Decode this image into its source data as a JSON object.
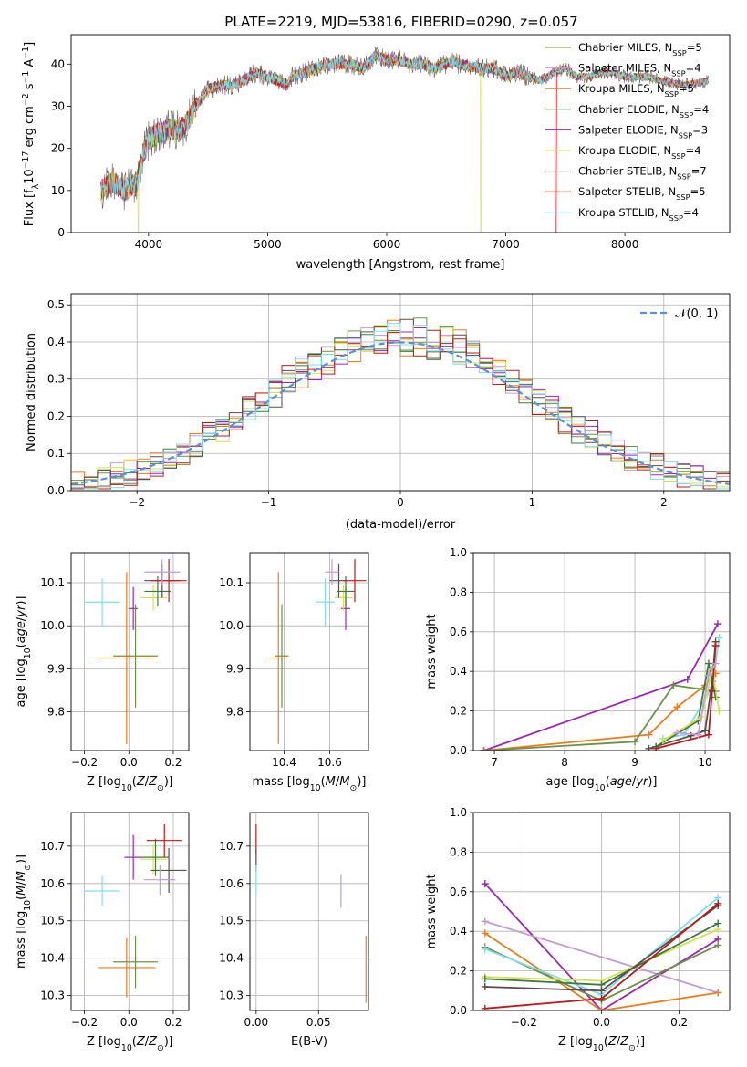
{
  "figure_title": "PLATE=2219, MJD=53816, FIBERID=0290, z=0.057",
  "model_colors": [
    "#6f8f4a",
    "#c39bd3",
    "#e67e22",
    "#3e7a3e",
    "#9b27af",
    "#d4e157",
    "#5d4a4a",
    "#b71c1c",
    "#80deea"
  ],
  "chart_data": [
    {
      "id": "spectrum",
      "type": "line",
      "title": "PLATE=2219, MJD=53816, FIBERID=0290, z=0.057",
      "xlabel": "wavelength [Angstrom, rest frame]",
      "ylabel": "Flux [f_λ 10^-17 erg cm^-2 s^-1 A^-1]",
      "xlim": [
        3350,
        8880
      ],
      "ylim": [
        0,
        47
      ],
      "xticks": [
        "4000",
        "5000",
        "6000",
        "7000",
        "8000"
      ],
      "yticks": [
        "0",
        "10",
        "20",
        "30",
        "40"
      ],
      "grid": false,
      "legend_position": "top-right",
      "legend": [
        {
          "label": "Chabrier MILES, N",
          "sub": "SSP",
          "tail": "=5"
        },
        {
          "label": "Salpeter MILES, N",
          "sub": "SSP",
          "tail": "=4"
        },
        {
          "label": "Kroupa MILES, N",
          "sub": "SSP",
          "tail": "=5"
        },
        {
          "label": "Chabrier ELODIE, N",
          "sub": "SSP",
          "tail": "=4"
        },
        {
          "label": "Salpeter ELODIE, N",
          "sub": "SSP",
          "tail": "=3"
        },
        {
          "label": "Kroupa ELODIE, N",
          "sub": "SSP",
          "tail": "=4"
        },
        {
          "label": "Chabrier STELIB, N",
          "sub": "SSP",
          "tail": "=7"
        },
        {
          "label": "Salpeter STELIB, N",
          "sub": "SSP",
          "tail": "=5"
        },
        {
          "label": "Kroupa STELIB, N",
          "sub": "SSP",
          "tail": "=4"
        }
      ],
      "continuum": [
        [
          3600,
          10
        ],
        [
          3700,
          12
        ],
        [
          3800,
          10
        ],
        [
          3900,
          12
        ],
        [
          3950,
          18
        ],
        [
          4000,
          22
        ],
        [
          4100,
          24
        ],
        [
          4300,
          25
        ],
        [
          4400,
          30
        ],
        [
          4500,
          34
        ],
        [
          4600,
          35
        ],
        [
          4700,
          35
        ],
        [
          4800,
          36
        ],
        [
          4900,
          38
        ],
        [
          5000,
          37
        ],
        [
          5100,
          36
        ],
        [
          5170,
          35
        ],
        [
          5200,
          37
        ],
        [
          5300,
          38
        ],
        [
          5400,
          39
        ],
        [
          5500,
          40
        ],
        [
          5700,
          40
        ],
        [
          5800,
          39
        ],
        [
          5900,
          42
        ],
        [
          6000,
          41
        ],
        [
          6100,
          41
        ],
        [
          6200,
          40
        ],
        [
          6300,
          40
        ],
        [
          6400,
          39
        ],
        [
          6500,
          40
        ],
        [
          6562,
          41
        ],
        [
          6600,
          40
        ],
        [
          6800,
          39
        ],
        [
          6900,
          39
        ],
        [
          7000,
          37
        ],
        [
          7100,
          38
        ],
        [
          7200,
          37
        ],
        [
          7300,
          36
        ],
        [
          7400,
          38
        ],
        [
          7500,
          39
        ],
        [
          7600,
          37
        ],
        [
          7700,
          37
        ],
        [
          7800,
          38
        ],
        [
          7900,
          38
        ],
        [
          8000,
          37
        ],
        [
          8100,
          37
        ],
        [
          8200,
          37
        ],
        [
          8300,
          36
        ],
        [
          8500,
          35
        ],
        [
          8700,
          36
        ]
      ],
      "dropouts": [
        {
          "x": 3915,
          "series": 5
        },
        {
          "x": 6790,
          "series": 5
        },
        {
          "x": 7420,
          "series": 7
        }
      ]
    },
    {
      "id": "residuals",
      "type": "step",
      "xlabel": "(data-model)/error",
      "ylabel": "Normed distribution",
      "xlim": [
        -2.5,
        2.5
      ],
      "ylim": [
        0,
        0.53
      ],
      "xticks": [
        "−2",
        "−1",
        "0",
        "1",
        "2"
      ],
      "yticks": [
        "0.0",
        "0.1",
        "0.2",
        "0.3",
        "0.4",
        "0.5"
      ],
      "grid": true,
      "legend_position": "top-right",
      "legend": [
        {
          "label": "𝒩(0, 1)"
        }
      ],
      "bin_width": 0.1,
      "reference_curve": "gaussian(0,1)"
    },
    {
      "id": "age-vs-Z",
      "type": "errorbar",
      "xlabel": "Z [log10(Z/Z☉)]",
      "ylabel": "age [log10(age/yr)]",
      "xlim": [
        -0.26,
        0.27
      ],
      "ylim": [
        9.71,
        10.17
      ],
      "xticks": [
        -0.2,
        0.0,
        0.2
      ],
      "xtick_labels": [
        "−0.2",
        "0.0",
        "0.2"
      ],
      "yticks": [
        9.8,
        9.9,
        10.0,
        10.1
      ],
      "ytick_labels": [
        "9.8",
        "9.9",
        "10.0",
        "10.1"
      ],
      "grid": true,
      "points": [
        {
          "x": -0.12,
          "y": 10.055,
          "xerr": 0.08,
          "yerr": 0.055,
          "series": 8
        },
        {
          "x": 0.02,
          "y": 10.04,
          "xerr": 0.02,
          "yerr": 0.05,
          "series": 4
        },
        {
          "x": -0.01,
          "y": 9.925,
          "xerr": 0.13,
          "yerr": 0.2,
          "series": 2
        },
        {
          "x": 0.03,
          "y": 9.93,
          "xerr": 0.1,
          "yerr": 0.12,
          "series": 0
        },
        {
          "x": 0.11,
          "y": 10.065,
          "xerr": 0.06,
          "yerr": 0.03,
          "series": 5
        },
        {
          "x": 0.13,
          "y": 10.08,
          "xerr": 0.06,
          "yerr": 0.035,
          "series": 3
        },
        {
          "x": 0.15,
          "y": 10.105,
          "xerr": 0.08,
          "yerr": 0.04,
          "series": 6
        },
        {
          "x": 0.18,
          "y": 10.105,
          "xerr": 0.08,
          "yerr": 0.05,
          "series": 7
        },
        {
          "x": 0.15,
          "y": 10.125,
          "xerr": 0.08,
          "yerr": 0.03,
          "series": 1
        }
      ]
    },
    {
      "id": "age-vs-mass",
      "type": "errorbar",
      "xlabel": "mass [log10(M/M☉)]",
      "ylabel": "",
      "xlim": [
        10.25,
        10.77
      ],
      "ylim": [
        9.71,
        10.17
      ],
      "xticks": [
        10.4,
        10.6
      ],
      "xtick_labels": [
        "10.4",
        "10.6"
      ],
      "yticks": [
        9.8,
        9.9,
        10.0,
        10.1
      ],
      "ytick_labels": [
        "9.8",
        "9.9",
        "10.0",
        "10.1"
      ],
      "grid": true,
      "points": [
        {
          "x": 10.58,
          "y": 10.055,
          "xerr": 0.04,
          "yerr": 0.055,
          "series": 8
        },
        {
          "x": 10.67,
          "y": 10.04,
          "xerr": 0.02,
          "yerr": 0.05,
          "series": 4
        },
        {
          "x": 10.375,
          "y": 9.925,
          "xerr": 0.04,
          "yerr": 0.2,
          "series": 2
        },
        {
          "x": 10.39,
          "y": 9.93,
          "xerr": 0.03,
          "yerr": 0.12,
          "series": 0
        },
        {
          "x": 10.66,
          "y": 10.065,
          "xerr": 0.04,
          "yerr": 0.03,
          "series": 5
        },
        {
          "x": 10.67,
          "y": 10.08,
          "xerr": 0.04,
          "yerr": 0.035,
          "series": 3
        },
        {
          "x": 10.64,
          "y": 10.105,
          "xerr": 0.04,
          "yerr": 0.04,
          "series": 6
        },
        {
          "x": 10.71,
          "y": 10.105,
          "xerr": 0.05,
          "yerr": 0.05,
          "series": 7
        },
        {
          "x": 10.61,
          "y": 10.125,
          "xerr": 0.03,
          "yerr": 0.03,
          "series": 1
        }
      ]
    },
    {
      "id": "weight-vs-age",
      "type": "line",
      "xlabel": "age [log10(age/yr)]",
      "ylabel": "mass weight",
      "xlim": [
        6.7,
        10.35
      ],
      "ylim": [
        0,
        1.0
      ],
      "xticks": [
        7,
        8,
        9,
        10
      ],
      "xtick_labels": [
        "7",
        "8",
        "9",
        "10"
      ],
      "yticks": [
        0,
        0.2,
        0.4,
        0.6,
        0.8,
        1.0
      ],
      "ytick_labels": [
        "0.0",
        "0.2",
        "0.4",
        "0.6",
        "0.8",
        "1.0"
      ],
      "grid": true,
      "series": [
        {
          "color": 4,
          "points": [
            [
              6.85,
              0.0
            ],
            [
              9.75,
              0.36
            ],
            [
              10.18,
              0.64
            ]
          ]
        },
        {
          "color": 2,
          "points": [
            [
              6.85,
              0.0
            ],
            [
              9.2,
              0.08
            ],
            [
              9.6,
              0.22
            ],
            [
              10.0,
              0.33
            ],
            [
              10.15,
              0.39
            ]
          ]
        },
        {
          "color": 0,
          "points": [
            [
              6.85,
              0.0
            ],
            [
              9.0,
              0.045
            ],
            [
              9.55,
              0.33
            ],
            [
              10.15,
              0.3
            ]
          ]
        },
        {
          "color": 8,
          "points": [
            [
              9.4,
              0.06
            ],
            [
              9.7,
              0.08
            ],
            [
              10.1,
              0.32
            ],
            [
              10.2,
              0.57
            ]
          ]
        },
        {
          "color": 6,
          "points": [
            [
              9.2,
              0.01
            ],
            [
              9.8,
              0.075
            ],
            [
              10.0,
              0.1
            ],
            [
              10.1,
              0.35
            ],
            [
              10.15,
              0.55
            ]
          ]
        },
        {
          "color": 3,
          "points": [
            [
              9.3,
              0.02
            ],
            [
              9.9,
              0.15
            ],
            [
              10.05,
              0.44
            ],
            [
              10.15,
              0.27
            ]
          ]
        },
        {
          "color": 5,
          "points": [
            [
              9.4,
              0.05
            ],
            [
              9.95,
              0.17
            ],
            [
              10.1,
              0.41
            ],
            [
              10.2,
              0.2
            ]
          ]
        },
        {
          "color": 7,
          "points": [
            [
              9.3,
              0.01
            ],
            [
              10.05,
              0.08
            ],
            [
              10.1,
              0.3
            ],
            [
              10.15,
              0.53
            ]
          ]
        },
        {
          "color": 1,
          "points": [
            [
              9.6,
              0.09
            ],
            [
              9.9,
              0.08
            ],
            [
              10.05,
              0.38
            ],
            [
              10.15,
              0.44
            ]
          ]
        }
      ]
    },
    {
      "id": "mass-vs-Z",
      "type": "errorbar",
      "xlabel": "Z [log10(Z/Z☉)]",
      "ylabel": "mass [log10(M/M☉)]",
      "xlim": [
        -0.26,
        0.27
      ],
      "ylim": [
        10.26,
        10.79
      ],
      "xticks": [
        -0.2,
        0.0,
        0.2
      ],
      "xtick_labels": [
        "−0.2",
        "0.0",
        "0.2"
      ],
      "yticks": [
        10.3,
        10.4,
        10.5,
        10.6,
        10.7
      ],
      "ytick_labels": [
        "10.3",
        "10.4",
        "10.5",
        "10.6",
        "10.7"
      ],
      "grid": true,
      "points": [
        {
          "x": -0.12,
          "y": 10.58,
          "xerr": 0.08,
          "yerr": 0.04,
          "series": 8
        },
        {
          "x": 0.02,
          "y": 10.67,
          "xerr": 0.04,
          "yerr": 0.06,
          "series": 4
        },
        {
          "x": -0.01,
          "y": 10.375,
          "xerr": 0.13,
          "yerr": 0.08,
          "series": 2
        },
        {
          "x": 0.03,
          "y": 10.39,
          "xerr": 0.1,
          "yerr": 0.07,
          "series": 0
        },
        {
          "x": 0.11,
          "y": 10.665,
          "xerr": 0.06,
          "yerr": 0.04,
          "series": 5
        },
        {
          "x": 0.12,
          "y": 10.67,
          "xerr": 0.06,
          "yerr": 0.05,
          "series": 3
        },
        {
          "x": 0.18,
          "y": 10.635,
          "xerr": 0.08,
          "yerr": 0.06,
          "series": 6
        },
        {
          "x": 0.16,
          "y": 10.715,
          "xerr": 0.08,
          "yerr": 0.045,
          "series": 7
        },
        {
          "x": 0.14,
          "y": 10.61,
          "xerr": 0.07,
          "yerr": 0.04,
          "series": 1
        }
      ]
    },
    {
      "id": "mass-vs-ebv",
      "type": "errorbar",
      "xlabel": "E(B-V)",
      "ylabel": "",
      "xlim": [
        -0.005,
        0.09
      ],
      "ylim": [
        10.26,
        10.79
      ],
      "xticks": [
        0.0,
        0.05
      ],
      "xtick_labels": [
        "0.00",
        "0.05"
      ],
      "yticks": [
        10.3,
        10.4,
        10.5,
        10.6,
        10.7
      ],
      "ytick_labels": [
        "10.3",
        "10.4",
        "10.5",
        "10.6",
        "10.7"
      ],
      "grid": true,
      "points": [
        {
          "x": 0.0,
          "y": 10.72,
          "xerr": 0,
          "yerr": 0.04,
          "series": 7
        },
        {
          "x": 0.0,
          "y": 10.66,
          "xerr": 0,
          "yerr": 0.03,
          "series": 6
        },
        {
          "x": 0.0,
          "y": 10.61,
          "xerr": 0,
          "yerr": 0.04,
          "series": 8
        },
        {
          "x": 0.068,
          "y": 10.58,
          "xerr": 0,
          "yerr": 0.045,
          "series": 1
        },
        {
          "x": 0.088,
          "y": 10.37,
          "xerr": 0,
          "yerr": 0.09,
          "series": 2
        }
      ]
    },
    {
      "id": "weight-vs-Z",
      "type": "line",
      "xlabel": "Z [log10(Z/Z☉)]",
      "ylabel": "mass weight",
      "xlim": [
        -0.33,
        0.33
      ],
      "ylim": [
        0,
        1.0
      ],
      "xticks": [
        -0.2,
        0.0,
        0.2
      ],
      "xtick_labels": [
        "−0.2",
        "0.0",
        "0.2"
      ],
      "yticks": [
        0,
        0.2,
        0.4,
        0.6,
        0.8,
        1.0
      ],
      "ytick_labels": [
        "0.0",
        "0.2",
        "0.4",
        "0.6",
        "0.8",
        "1.0"
      ],
      "grid": true,
      "series": [
        {
          "color": 4,
          "points": [
            [
              -0.3,
              0.64
            ],
            [
              0.0,
              0.0
            ],
            [
              0.3,
              0.36
            ]
          ]
        },
        {
          "color": 1,
          "points": [
            [
              -0.3,
              0.45
            ],
            [
              0.3,
              0.09
            ]
          ]
        },
        {
          "color": 2,
          "points": [
            [
              -0.3,
              0.39
            ],
            [
              0.0,
              0.0
            ],
            [
              0.3,
              0.09
            ]
          ]
        },
        {
          "color": 0,
          "points": [
            [
              -0.3,
              0.32
            ],
            [
              0.0,
              0.05
            ],
            [
              0.3,
              0.33
            ]
          ]
        },
        {
          "color": 8,
          "points": [
            [
              -0.3,
              0.31
            ],
            [
              0.0,
              0.08
            ],
            [
              0.3,
              0.57
            ]
          ]
        },
        {
          "color": 5,
          "points": [
            [
              -0.3,
              0.17
            ],
            [
              0.0,
              0.15
            ],
            [
              0.3,
              0.41
            ]
          ]
        },
        {
          "color": 3,
          "points": [
            [
              -0.3,
              0.16
            ],
            [
              0.0,
              0.13
            ],
            [
              0.3,
              0.44
            ]
          ]
        },
        {
          "color": 6,
          "points": [
            [
              -0.3,
              0.12
            ],
            [
              0.0,
              0.1
            ],
            [
              0.3,
              0.53
            ]
          ]
        },
        {
          "color": 7,
          "points": [
            [
              -0.3,
              0.01
            ],
            [
              0.0,
              0.06
            ],
            [
              0.3,
              0.54
            ]
          ]
        }
      ]
    }
  ]
}
